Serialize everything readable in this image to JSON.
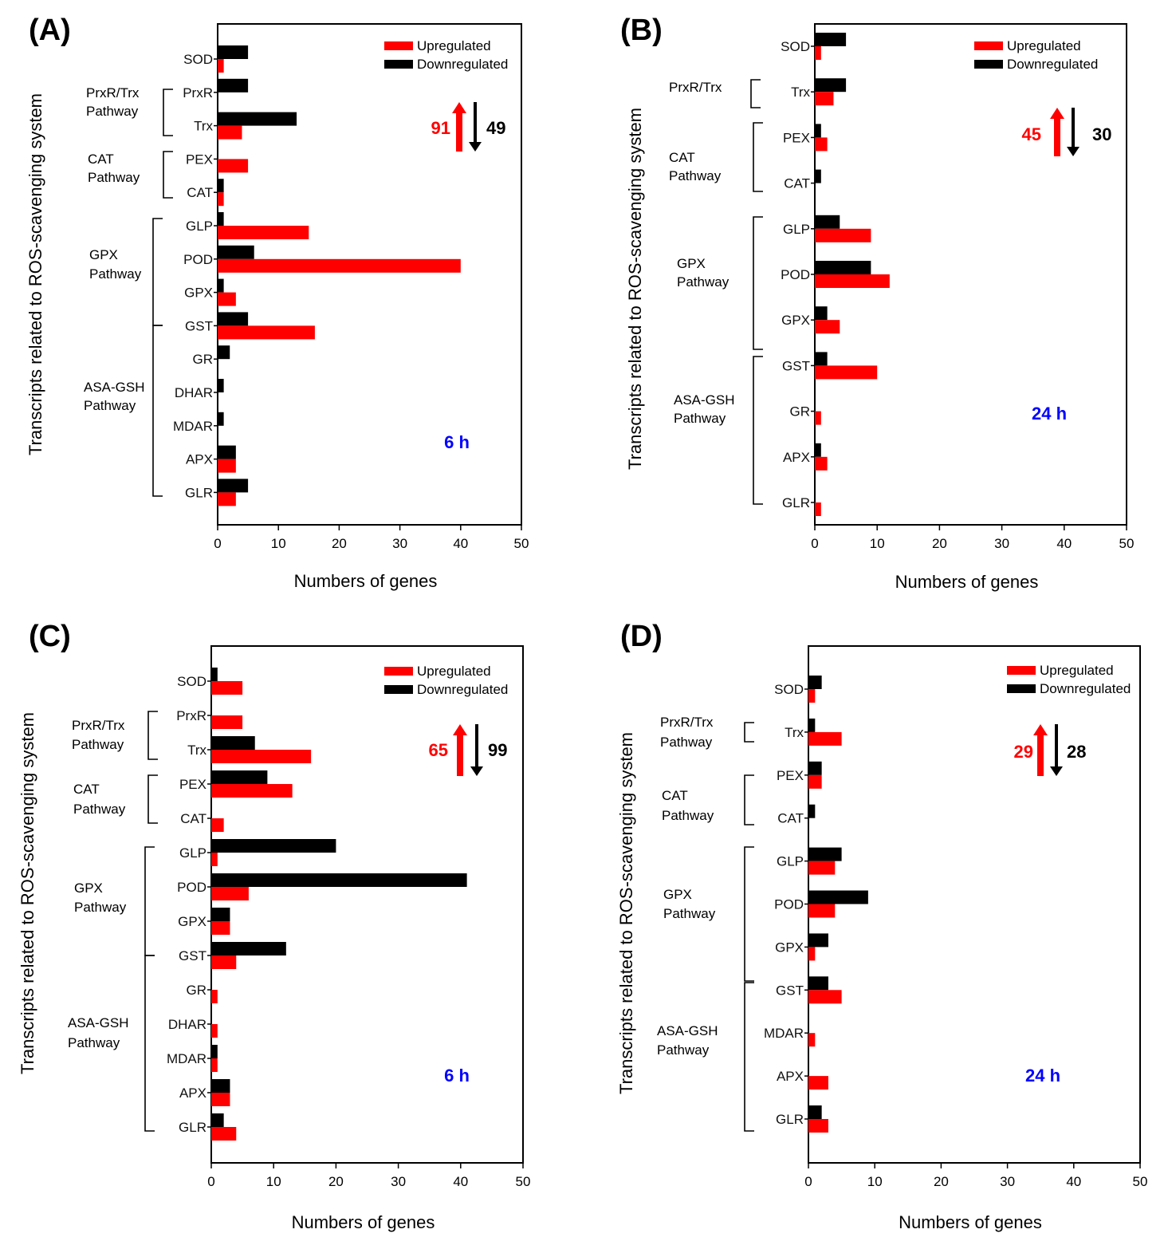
{
  "colors": {
    "up": "#ff0000",
    "down": "#000000",
    "time": "#0000ff"
  },
  "chart_data": [
    {
      "id": "A",
      "type": "bar",
      "orientation": "horizontal",
      "panel_label": "(A)",
      "ylabel": "Transcripts related to ROS-scavenging system",
      "xlabel": "Numbers of genes",
      "xlim": [
        0,
        50
      ],
      "xticks": [
        "0",
        "10",
        "20",
        "30",
        "40",
        "50"
      ],
      "legend": [
        "Upregulated",
        "Downregulated"
      ],
      "categories": [
        "SOD",
        "PrxR",
        "Trx",
        "PEX",
        "CAT",
        "GLP",
        "POD",
        "GPX",
        "GST",
        "GR",
        "DHAR",
        "MDAR",
        "APX",
        "GLR"
      ],
      "series": [
        {
          "name": "Upregulated",
          "values": [
            1,
            0,
            4,
            5,
            1,
            15,
            40,
            3,
            16,
            0,
            0,
            0,
            3,
            3
          ]
        },
        {
          "name": "Downregulated",
          "values": [
            5,
            5,
            13,
            0,
            1,
            1,
            6,
            1,
            5,
            2,
            1,
            1,
            3,
            5
          ]
        }
      ],
      "totals": {
        "up": "91",
        "down": "49"
      },
      "time": "6 h",
      "groups": [
        {
          "label": [
            "PrxR/Trx",
            "Pathway"
          ]
        },
        {
          "label": [
            "CAT",
            "Pathway"
          ]
        },
        {
          "label": [
            "GPX",
            "Pathway"
          ]
        },
        {
          "label": [
            "ASA-GSH",
            "Pathway"
          ]
        }
      ]
    },
    {
      "id": "B",
      "type": "bar",
      "orientation": "horizontal",
      "panel_label": "(B)",
      "ylabel": "Transcripts related to ROS-scavenging system",
      "xlabel": "Numbers of genes",
      "xlim": [
        0,
        50
      ],
      "xticks": [
        "0",
        "10",
        "20",
        "30",
        "40",
        "50"
      ],
      "legend": [
        "Upregulated",
        "Downregulated"
      ],
      "categories": [
        "SOD",
        "Trx",
        "PEX",
        "CAT",
        "GLP",
        "POD",
        "GPX",
        "GST",
        "GR",
        "APX",
        "GLR"
      ],
      "series": [
        {
          "name": "Upregulated",
          "values": [
            1,
            3,
            2,
            0,
            9,
            12,
            4,
            10,
            1,
            2,
            1
          ]
        },
        {
          "name": "Downregulated",
          "values": [
            5,
            5,
            1,
            1,
            4,
            9,
            2,
            2,
            0,
            1,
            0
          ]
        }
      ],
      "totals": {
        "up": "45",
        "down": "30"
      },
      "time": "24 h",
      "groups": [
        {
          "label": [
            "PrxR/Trx"
          ]
        },
        {
          "label": [
            "CAT",
            "Pathway"
          ]
        },
        {
          "label": [
            "GPX",
            "Pathway"
          ]
        },
        {
          "label": [
            "ASA-GSH",
            "Pathway"
          ]
        }
      ]
    },
    {
      "id": "C",
      "type": "bar",
      "orientation": "horizontal",
      "panel_label": "(C)",
      "ylabel": "Transcripts related to ROS-scavenging system",
      "xlabel": "Numbers of genes",
      "xlim": [
        0,
        50
      ],
      "xticks": [
        "0",
        "10",
        "20",
        "30",
        "40",
        "50"
      ],
      "legend": [
        "Upregulated",
        "Downregulated"
      ],
      "categories": [
        "SOD",
        "PrxR",
        "Trx",
        "PEX",
        "CAT",
        "GLP",
        "POD",
        "GPX",
        "GST",
        "GR",
        "DHAR",
        "MDAR",
        "APX",
        "GLR"
      ],
      "series": [
        {
          "name": "Upregulated",
          "values": [
            5,
            5,
            16,
            13,
            2,
            1,
            6,
            3,
            4,
            1,
            1,
            1,
            3,
            4
          ]
        },
        {
          "name": "Downregulated",
          "values": [
            1,
            0,
            7,
            9,
            0,
            20,
            41,
            3,
            12,
            0,
            0,
            1,
            3,
            2
          ]
        }
      ],
      "totals": {
        "up": "65",
        "down": "99"
      },
      "time": "6 h",
      "groups": [
        {
          "label": [
            "PrxR/Trx",
            "Pathway"
          ]
        },
        {
          "label": [
            "CAT",
            "Pathway"
          ]
        },
        {
          "label": [
            "GPX",
            "Pathway"
          ]
        },
        {
          "label": [
            "ASA-GSH",
            "Pathway"
          ]
        }
      ]
    },
    {
      "id": "D",
      "type": "bar",
      "orientation": "horizontal",
      "panel_label": "(D)",
      "ylabel": "Transcripts related to ROS-scavenging system",
      "xlabel": "Numbers of genes",
      "xlim": [
        0,
        50
      ],
      "xticks": [
        "0",
        "10",
        "20",
        "30",
        "40",
        "50"
      ],
      "legend": [
        "Upregulated",
        "Downregulated"
      ],
      "categories": [
        "SOD",
        "Trx",
        "PEX",
        "CAT",
        "GLP",
        "POD",
        "GPX",
        "GST",
        "MDAR",
        "APX",
        "GLR"
      ],
      "series": [
        {
          "name": "Upregulated",
          "values": [
            1,
            5,
            2,
            0,
            4,
            4,
            1,
            5,
            1,
            3,
            3
          ]
        },
        {
          "name": "Downregulated",
          "values": [
            2,
            1,
            2,
            1,
            5,
            9,
            3,
            3,
            0,
            0,
            2
          ]
        }
      ],
      "totals": {
        "up": "29",
        "down": "28"
      },
      "time": "24 h",
      "groups": [
        {
          "label": [
            "PrxR/Trx",
            "Pathway"
          ]
        },
        {
          "label": [
            "CAT",
            "Pathway"
          ]
        },
        {
          "label": [
            "GPX",
            "Pathway"
          ]
        },
        {
          "label": [
            "ASA-GSH",
            "Pathway"
          ]
        }
      ]
    }
  ]
}
